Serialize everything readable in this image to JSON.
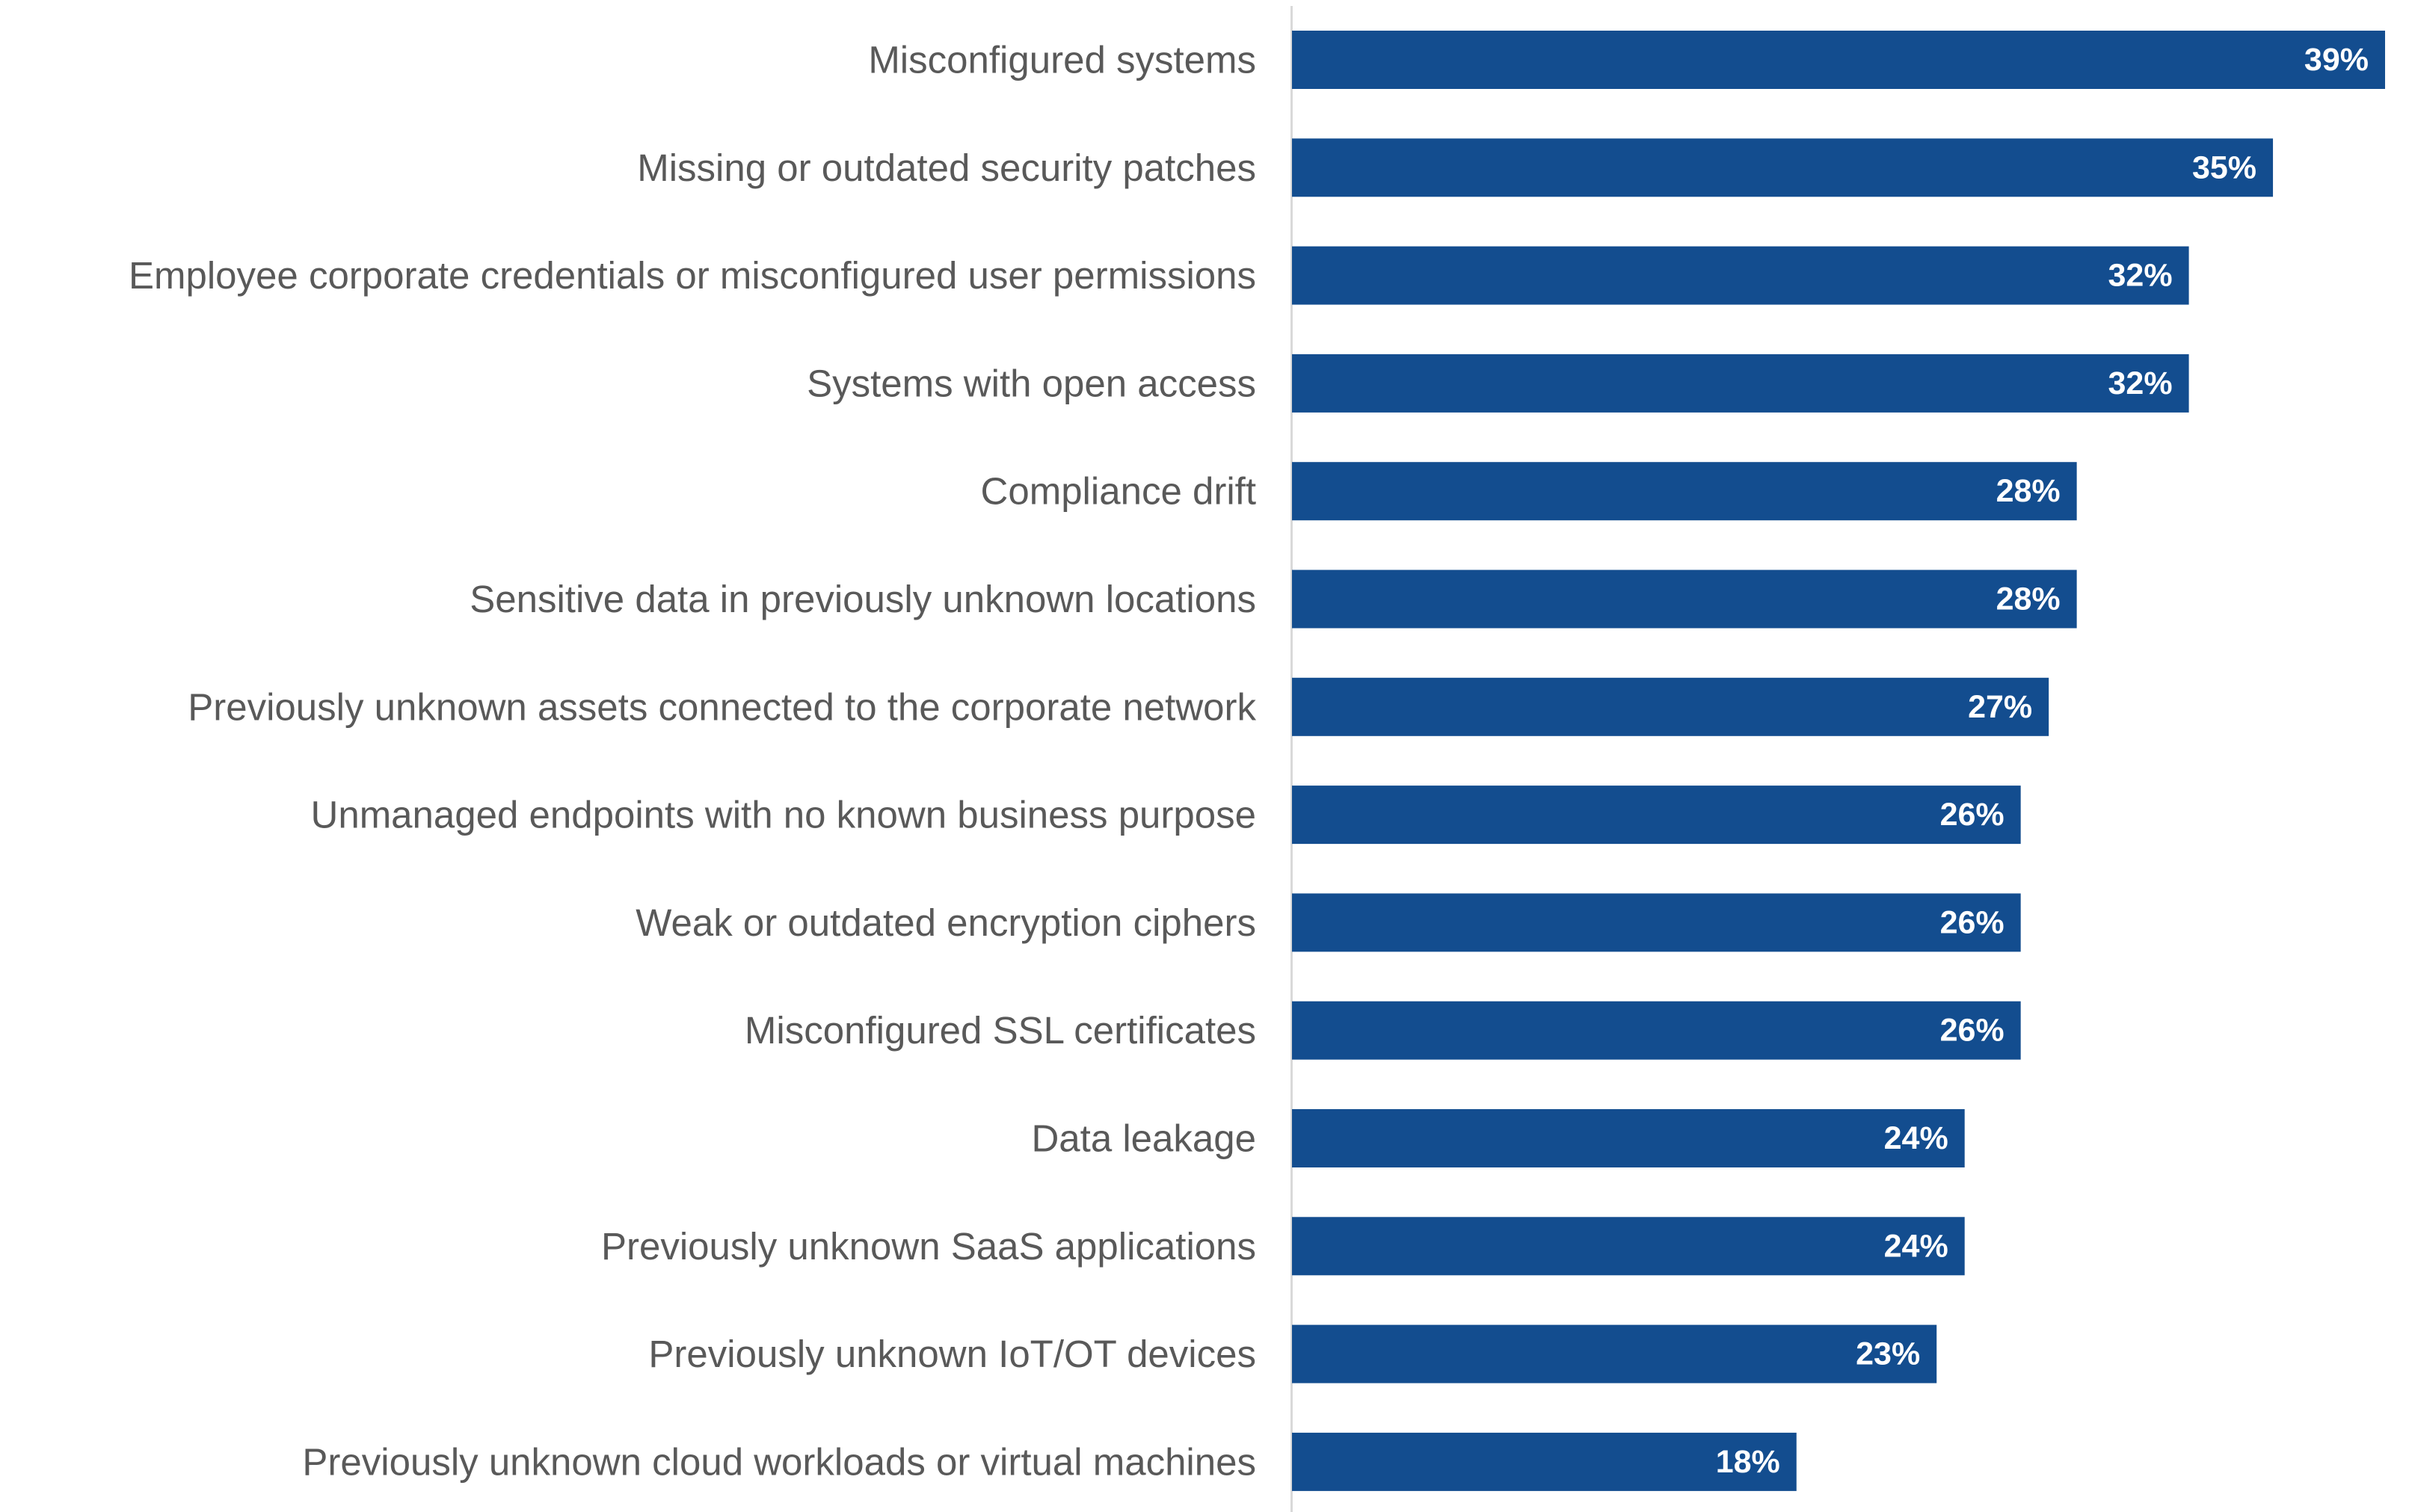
{
  "chart_data": {
    "type": "bar",
    "orientation": "horizontal",
    "title": "",
    "xlabel": "",
    "ylabel": "",
    "xlim": [
      0,
      39
    ],
    "grid": false,
    "legend": "none",
    "colors": {
      "bar": "#134D8F",
      "category_label": "#595959",
      "value_label": "#FFFFFF",
      "axis_line": "#D9D9D9"
    },
    "categories": [
      "Misconfigured systems",
      "Missing or outdated security patches",
      "Employee corporate credentials or misconfigured user permissions",
      "Systems with open access ",
      "Compliance drift",
      "Sensitive data in previously unknown locations",
      "Previously unknown assets connected to the corporate network",
      "Unmanaged endpoints with no known business purpose",
      "Weak or outdated encryption ciphers",
      "Misconfigured SSL certificates",
      "Data leakage",
      "Previously unknown SaaS applications",
      "Previously unknown IoT/OT devices",
      "Previously unknown cloud workloads or virtual machines"
    ],
    "values": [
      39,
      35,
      32,
      32,
      28,
      28,
      27,
      26,
      26,
      26,
      24,
      24,
      23,
      18
    ],
    "value_labels": [
      "39%",
      "35%",
      "32%",
      "32%",
      "28%",
      "28%",
      "27%",
      "26%",
      "26%",
      "26%",
      "24%",
      "24%",
      "23%",
      "18%"
    ]
  }
}
